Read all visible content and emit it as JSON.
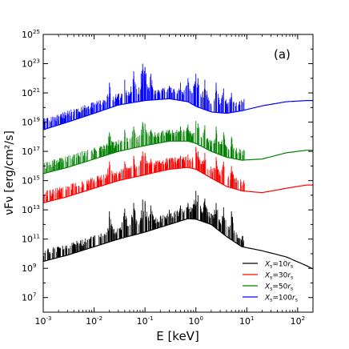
{
  "chart_data": {
    "type": "line",
    "panel_label": "(a)",
    "xlabel": "E [keV]",
    "ylabel_text": "νFν [erg/cm²/s]",
    "x_scale": "log",
    "y_scale": "log",
    "xlim": [
      0.001,
      200
    ],
    "ylim": [
      1000000.0,
      1e+25
    ],
    "x_ticks": [
      {
        "value": 0.001,
        "base": "10",
        "exp": "-3"
      },
      {
        "value": 0.01,
        "base": "10",
        "exp": "-2"
      },
      {
        "value": 0.1,
        "base": "10",
        "exp": "-1"
      },
      {
        "value": 1,
        "base": "10",
        "exp": "0"
      },
      {
        "value": 10,
        "base": "10",
        "exp": "1"
      },
      {
        "value": 100,
        "base": "10",
        "exp": "2"
      }
    ],
    "y_ticks": [
      {
        "value": 10000000.0,
        "base": "10",
        "exp": "7"
      },
      {
        "value": 1000000000.0,
        "base": "10",
        "exp": "9"
      },
      {
        "value": 100000000000.0,
        "base": "10",
        "exp": "11"
      },
      {
        "value": 10000000000000.0,
        "base": "10",
        "exp": "13"
      },
      {
        "value": 1000000000000000.0,
        "base": "10",
        "exp": "15"
      },
      {
        "value": 1e+17,
        "base": "10",
        "exp": "17"
      },
      {
        "value": 1e+19,
        "base": "10",
        "exp": "19"
      },
      {
        "value": 1e+21,
        "base": "10",
        "exp": "21"
      },
      {
        "value": 1e+23,
        "base": "10",
        "exp": "23"
      },
      {
        "value": 1e+25,
        "base": "10",
        "exp": "25"
      }
    ],
    "legend_position": "lower-right",
    "grid": false,
    "series": [
      {
        "name": "X_s = 10 r_s",
        "legend_main": "X",
        "legend_sub1": "s",
        "legend_eq": "=10",
        "legend_r": "r",
        "legend_sub2": "s",
        "color": "#000000",
        "continuum": [
          [
            0.001,
            3000000000.0
          ],
          [
            0.003,
            8000000000.0
          ],
          [
            0.01,
            30000000000.0
          ],
          [
            0.03,
            100000000000.0
          ],
          [
            0.1,
            300000000000.0
          ],
          [
            0.3,
            1000000000000.0
          ],
          [
            0.7,
            2500000000000.0
          ],
          [
            1.0,
            2300000000000.0
          ],
          [
            2.0,
            1000000000000.0
          ],
          [
            4.0,
            150000000000.0
          ],
          [
            8.0,
            30000000000.0
          ],
          [
            20,
            16000000000.0
          ],
          [
            60,
            6000000000.0
          ],
          [
            150,
            1500000000.0
          ],
          [
            200,
            900000000.0
          ]
        ],
        "lines": [
          [
            0.06,
            30000000000000.0
          ],
          [
            0.09,
            50000000000000.0
          ],
          [
            0.1,
            40000000000000.0
          ],
          [
            0.13,
            20000000000000.0
          ],
          [
            1.0,
            200000000000000.0
          ],
          [
            1.1,
            100000000000000.0
          ],
          [
            1.5,
            60000000000000.0
          ],
          [
            0.02,
            8000000000000.0
          ],
          [
            0.04,
            12000000000000.0
          ],
          [
            0.3,
            10000000000000.0
          ],
          [
            0.5,
            20000000000000.0
          ],
          [
            0.7,
            30000000000000.0
          ],
          [
            2.5,
            30000000000000.0
          ],
          [
            3.5,
            15000000000000.0
          ],
          [
            5.0,
            8000000000000.0
          ]
        ]
      },
      {
        "name": "X_s = 30 r_s",
        "legend_main": "X",
        "legend_sub1": "s",
        "legend_eq": "=30",
        "legend_r": "r",
        "legend_sub2": "s",
        "color": "#ff0000",
        "continuum": [
          [
            0.001,
            30000000000000.0
          ],
          [
            0.003,
            80000000000000.0
          ],
          [
            0.01,
            300000000000000.0
          ],
          [
            0.03,
            1000000000000000.0
          ],
          [
            0.1,
            2500000000000000.0
          ],
          [
            0.3,
            6000000000000000.0
          ],
          [
            0.7,
            8000000000000000.0
          ],
          [
            1.0,
            6000000000000000.0
          ],
          [
            2.0,
            1500000000000000.0
          ],
          [
            4.0,
            400000000000000.0
          ],
          [
            8.0,
            200000000000000.0
          ],
          [
            20,
            150000000000000.0
          ],
          [
            60,
            300000000000000.0
          ],
          [
            150,
            500000000000000.0
          ],
          [
            200,
            500000000000000.0
          ]
        ],
        "lines": [
          [
            0.06,
            5e+16
          ],
          [
            0.09,
            1e+17
          ],
          [
            0.1,
            8e+16
          ],
          [
            0.13,
            3e+16
          ],
          [
            1.0,
            2e+17
          ],
          [
            1.1,
            1e+17
          ],
          [
            1.5,
            8e+16
          ],
          [
            0.02,
            2e+16
          ],
          [
            0.04,
            2e+16
          ],
          [
            0.3,
            3e+16
          ],
          [
            0.5,
            5e+16
          ],
          [
            0.7,
            6e+16
          ],
          [
            2.5,
            4e+16
          ],
          [
            3.5,
            2e+16
          ],
          [
            5.0,
            1e+16
          ]
        ]
      },
      {
        "name": "X_s = 50 r_s",
        "legend_main": "X",
        "legend_sub1": "s",
        "legend_eq": "=50",
        "legend_r": "r",
        "legend_sub2": "s",
        "color": "#008000",
        "continuum": [
          [
            0.001,
            3000000000000000.0
          ],
          [
            0.003,
            8000000000000000.0
          ],
          [
            0.01,
            3e+16
          ],
          [
            0.03,
            1e+17
          ],
          [
            0.1,
            2.5e+17
          ],
          [
            0.3,
            5e+17
          ],
          [
            0.7,
            5e+17
          ],
          [
            1.0,
            3.5e+17
          ],
          [
            2.0,
            1e+17
          ],
          [
            4.0,
            4e+16
          ],
          [
            8.0,
            2.5e+16
          ],
          [
            20,
            3e+16
          ],
          [
            60,
            8e+16
          ],
          [
            150,
            1.2e+17
          ],
          [
            200,
            1.2e+17
          ]
        ],
        "lines": [
          [
            0.06,
            5e+18
          ],
          [
            0.09,
            1e+19
          ],
          [
            0.1,
            8e+18
          ],
          [
            0.13,
            3e+18
          ],
          [
            1.0,
            1.2e+19
          ],
          [
            1.1,
            8e+18
          ],
          [
            1.5,
            6e+18
          ],
          [
            0.02,
            2e+18
          ],
          [
            0.04,
            3e+18
          ],
          [
            0.3,
            3e+18
          ],
          [
            0.5,
            5e+18
          ],
          [
            0.7,
            7e+18
          ],
          [
            2.5,
            5e+18
          ],
          [
            3.5,
            2e+18
          ],
          [
            5.0,
            1e+18
          ]
        ]
      },
      {
        "name": "X_s = 100 r_s",
        "legend_main": "X",
        "legend_sub1": "s",
        "legend_eq": "=100",
        "legend_r": "r",
        "legend_sub2": "s",
        "color": "#0000ff",
        "continuum": [
          [
            0.001,
            3e+18
          ],
          [
            0.003,
            1e+19
          ],
          [
            0.01,
            4e+19
          ],
          [
            0.03,
            1.5e+20
          ],
          [
            0.1,
            3e+20
          ],
          [
            0.3,
            4e+20
          ],
          [
            0.7,
            2.5e+20
          ],
          [
            1.0,
            1.2e+20
          ],
          [
            2.0,
            5e+19
          ],
          [
            4.0,
            4e+19
          ],
          [
            8.0,
            6e+19
          ],
          [
            20,
            1.3e+20
          ],
          [
            60,
            2.5e+20
          ],
          [
            150,
            3e+20
          ],
          [
            200,
            3e+20
          ]
        ],
        "lines": [
          [
            0.06,
            3e+22
          ],
          [
            0.09,
            1e+23
          ],
          [
            0.1,
            6e+22
          ],
          [
            0.13,
            2e+22
          ],
          [
            1.0,
            2e+22
          ],
          [
            1.1,
            1e+22
          ],
          [
            1.5,
            8e+21
          ],
          [
            0.02,
            5e+21
          ],
          [
            0.04,
            8e+21
          ],
          [
            0.3,
            3e+21
          ],
          [
            0.5,
            5e+21
          ],
          [
            0.7,
            1e+22
          ],
          [
            2.5,
            5e+21
          ],
          [
            3.5,
            2e+21
          ],
          [
            5.0,
            1e+21
          ]
        ]
      }
    ]
  }
}
